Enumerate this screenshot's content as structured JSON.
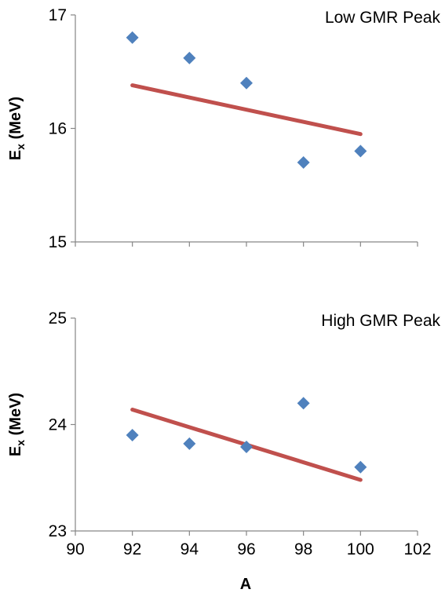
{
  "chart_data": [
    {
      "type": "scatter",
      "title": "Low GMR Peak",
      "ylabel": "E",
      "ylabel_subscript": "x",
      "ylabel_unit": " (MeV)",
      "xlabel": "",
      "xlim": [
        90,
        102
      ],
      "ylim": [
        15,
        17
      ],
      "yticks": [
        15,
        16,
        17
      ],
      "xticks": [],
      "grid": false,
      "colors": {
        "points": "#4f81bd",
        "trendline": "#c0504d"
      },
      "series": [
        {
          "x": [
            92,
            94,
            96,
            98,
            100
          ],
          "y": [
            16.8,
            16.62,
            16.4,
            15.7,
            15.8
          ]
        }
      ],
      "trendline": {
        "x": [
          92,
          100
        ],
        "y": [
          16.38,
          15.95
        ]
      }
    },
    {
      "type": "scatter",
      "title": "High GMR Peak",
      "ylabel": "E",
      "ylabel_subscript": "x",
      "ylabel_unit": " (MeV)",
      "xlabel": "A",
      "xlim": [
        90,
        102
      ],
      "ylim": [
        23,
        25
      ],
      "yticks": [
        23,
        24,
        25
      ],
      "xticks": [
        90,
        92,
        94,
        96,
        98,
        100,
        102
      ],
      "grid": false,
      "colors": {
        "points": "#4f81bd",
        "trendline": "#c0504d"
      },
      "series": [
        {
          "x": [
            92,
            94,
            96,
            98,
            100
          ],
          "y": [
            23.9,
            23.82,
            23.79,
            24.2,
            23.6
          ]
        }
      ],
      "trendline": {
        "x": [
          92,
          100
        ],
        "y": [
          24.14,
          23.48
        ]
      }
    }
  ]
}
